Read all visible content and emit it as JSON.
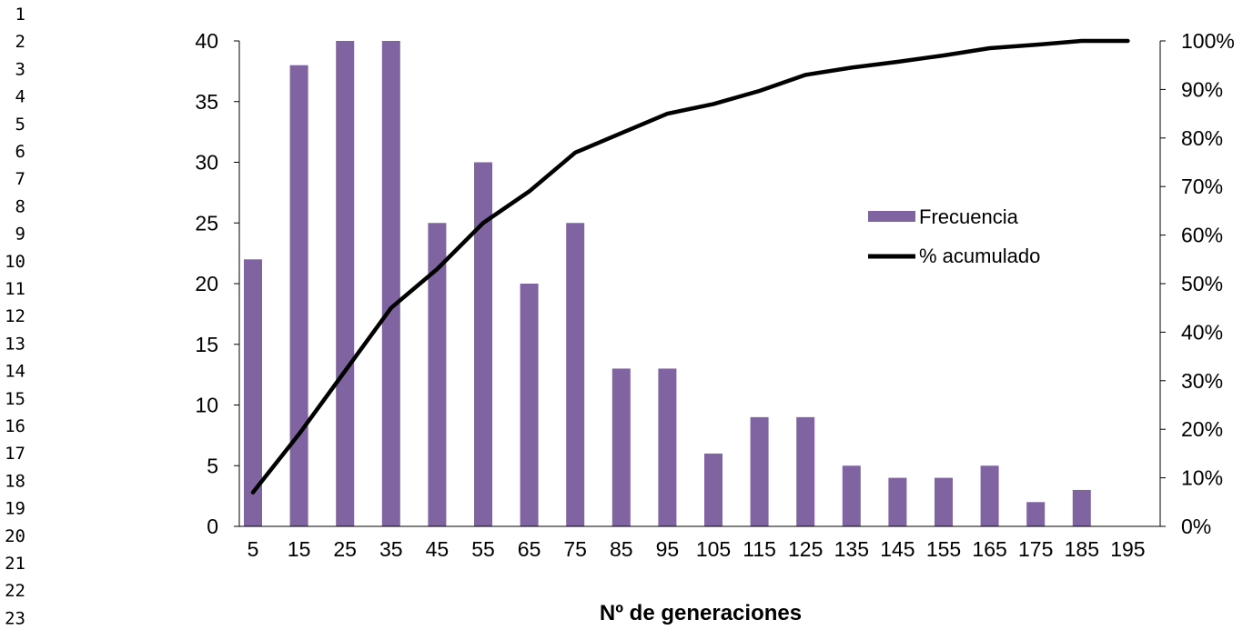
{
  "row_numbers": [
    "1",
    "2",
    "3",
    "4",
    "5",
    "6",
    "7",
    "8",
    "9",
    "10",
    "11",
    "12",
    "13",
    "14",
    "15",
    "16",
    "17",
    "18",
    "19",
    "20",
    "21",
    "22",
    "23"
  ],
  "chart_data": {
    "type": "bar",
    "title": "",
    "xlabel": "Nº  de generaciones",
    "ylabel": "",
    "categories": [
      "5",
      "15",
      "25",
      "35",
      "45",
      "55",
      "65",
      "75",
      "85",
      "95",
      "105",
      "115",
      "125",
      "135",
      "145",
      "155",
      "165",
      "175",
      "185",
      "195"
    ],
    "y_ticks": [
      "0",
      "5",
      "10",
      "15",
      "20",
      "25",
      "30",
      "35",
      "40"
    ],
    "y2_ticks": [
      "0%",
      "10%",
      "20%",
      "30%",
      "40%",
      "50%",
      "60%",
      "70%",
      "80%",
      "90%",
      "100%"
    ],
    "ylim": [
      0,
      40
    ],
    "y2lim": [
      0,
      100
    ],
    "grid": false,
    "legend_position": "right",
    "series": [
      {
        "name": "Frecuencia",
        "type": "bar",
        "axis": "left",
        "color": "#8064a2",
        "values": [
          22,
          38,
          40,
          40,
          25,
          30,
          20,
          25,
          13,
          13,
          6,
          9,
          9,
          5,
          4,
          4,
          5,
          2,
          3,
          0
        ]
      },
      {
        "name": "% acumulado",
        "type": "line",
        "axis": "right",
        "color": "#000000",
        "values": [
          7,
          19,
          32,
          45,
          53,
          62.5,
          69,
          77,
          81,
          85,
          87,
          89.7,
          93,
          94.5,
          95.7,
          97,
          98.5,
          99.2,
          100,
          100
        ]
      }
    ]
  }
}
